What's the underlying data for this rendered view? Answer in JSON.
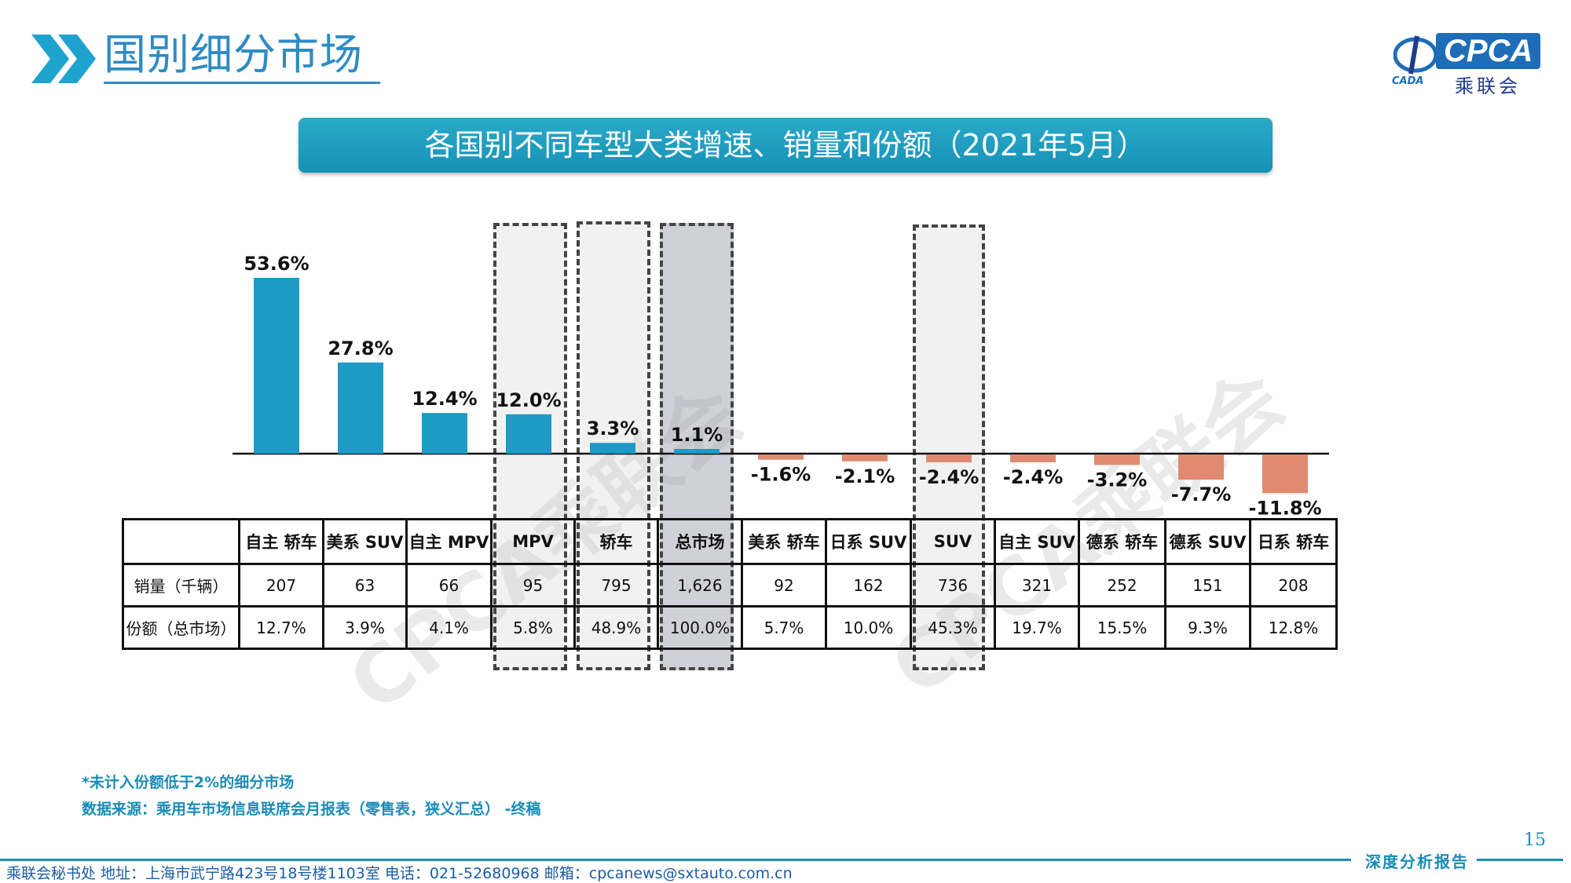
{
  "header": {
    "title": "国别细分市场"
  },
  "logo": {
    "text": "CPCA",
    "cn": "乘联会",
    "small": "CADA"
  },
  "banner": {
    "title": "各国别不同车型大类增速、销量和份额（2021年5月）"
  },
  "watermark": "CPCA乘联会",
  "colors": {
    "positive": "#1d9bc6",
    "negative": "#e08a72",
    "accent": "#2e8bc4"
  },
  "chart_data": {
    "type": "bar",
    "categories": [
      "自主 轿车",
      "美系 SUV",
      "自主 MPV",
      "MPV",
      "轿车",
      "总市场",
      "美系 轿车",
      "日系 SUV",
      "SUV",
      "自主 SUV",
      "德系 轿车",
      "德系 SUV",
      "日系 轿车"
    ],
    "values": [
      53.6,
      27.8,
      12.4,
      12.0,
      3.3,
      1.1,
      -1.6,
      -2.1,
      -2.4,
      -2.4,
      -3.2,
      -7.7,
      -11.8
    ],
    "value_labels": [
      "53.6%",
      "27.8%",
      "12.4%",
      "12.0%",
      "3.3%",
      "1.1%",
      "-1.6%",
      "-2.1%",
      "-2.4%",
      "-2.4%",
      "-3.2%",
      "-7.7%",
      "-11.8%"
    ],
    "highlighted": [
      "MPV",
      "轿车",
      "总市场",
      "SUV"
    ],
    "legend": "none",
    "grid": false
  },
  "table": {
    "rows": [
      {
        "label": "销量（千辆）",
        "values": [
          "207",
          "63",
          "66",
          "95",
          "795",
          "1,626",
          "92",
          "162",
          "736",
          "321",
          "252",
          "151",
          "208"
        ]
      },
      {
        "label": "份额（总市场）",
        "values": [
          "12.7%",
          "3.9%",
          "4.1%",
          "5.8%",
          "48.9%",
          "100.0%",
          "5.7%",
          "10.0%",
          "45.3%",
          "19.7%",
          "15.5%",
          "9.3%",
          "12.8%"
        ]
      }
    ]
  },
  "notes": {
    "line1": "*未计入份额低于2%的细分市场",
    "line2": "数据来源：乘用车市场信息联席会月报表（零售表，狭义汇总） -终稿"
  },
  "page_number": "15",
  "footer": {
    "tag": "深度分析报告",
    "text": "乘联会秘书处   地址：上海市武宁路423号18号楼1103室   电话：021-52680968   邮箱：cpcanews@sxtauto.com.cn"
  }
}
